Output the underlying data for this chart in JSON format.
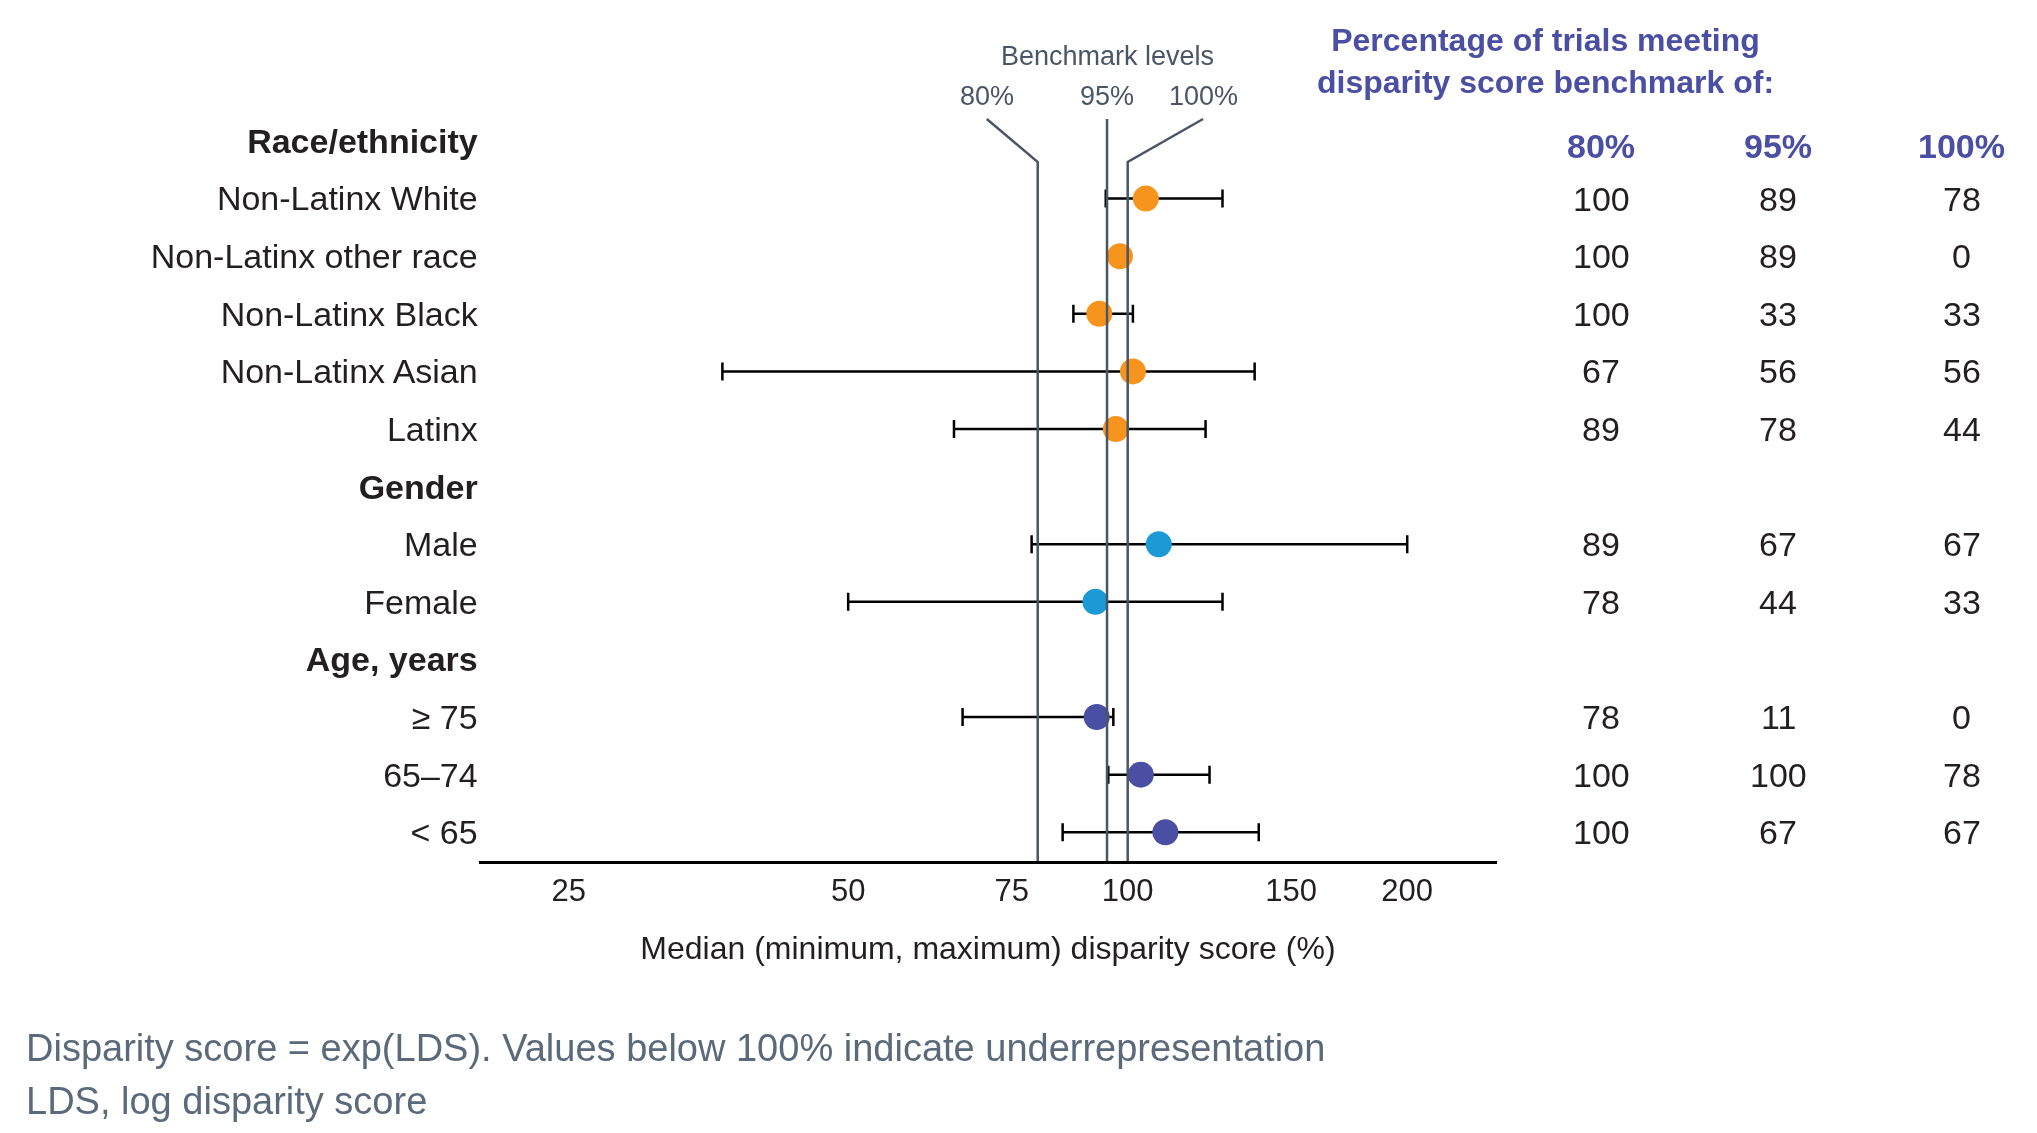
{
  "chart_data": [
    {
      "type": "scatter",
      "orientation": "horizontal",
      "xlabel": "Median (minimum, maximum) disparity score (%)",
      "categories": [
        "Race/ethnicity",
        "Non-Latinx White",
        "Non-Latinx other race",
        "Non-Latinx Black",
        "Non-Latinx Asian",
        "Latinx",
        "Gender",
        "Male",
        "Female",
        "Age, years",
        "≥ 75",
        "65–74",
        "< 65"
      ],
      "values": [
        null,
        104.6,
        98.1,
        93.2,
        101.3,
        97.1,
        null,
        108,
        92.3,
        null,
        92.6,
        103.3,
        109.8
      ],
      "errors": [
        null,
        [
          94.7,
          126.5
        ],
        null,
        [
          87.4,
          101.3
        ],
        [
          36.6,
          137
        ],
        [
          65,
          121.3
        ],
        null,
        [
          78.8,
          200
        ],
        [
          50,
          126.5
        ],
        null,
        [
          66.4,
          96.5
        ],
        [
          95.3,
          122.5
        ],
        [
          85.1,
          138.4
        ]
      ],
      "colors": [
        null,
        "#f7941d",
        "#f7941d",
        "#f7941d",
        "#f7941d",
        "#f7941d",
        null,
        "#1c9ad6",
        "#1c9ad6",
        null,
        "#4a4fa3",
        "#4a4fa3",
        "#4a4fa3"
      ],
      "marker": "circle",
      "log": "x",
      "grid": false,
      "xlim": [
        20,
        250
      ],
      "xticks": [
        25,
        50,
        75,
        100,
        150,
        200
      ],
      "ref_lines": [
        {
          "axis": "x",
          "value": 80,
          "label": "80%",
          "color": "#4a5566"
        },
        {
          "axis": "x",
          "value": 95,
          "label": "95%",
          "color": "#4a5566"
        },
        {
          "axis": "x",
          "value": 100,
          "label": "100%",
          "color": "#4a5566"
        }
      ],
      "annotations": [
        "Benchmark levels",
        "Disparity score = exp(LDS). Values below 100% indicate underrepresentation",
        "LDS, log disparity score"
      ]
    },
    {
      "type": "other",
      "title": "Percentage of trials meeting\ndisparity score benchmark of:",
      "annotations": [
        "80%",
        "95%",
        "100%",
        "100",
        "89",
        "78",
        "100",
        "89",
        "0",
        "100",
        "33",
        "33",
        "67",
        "56",
        "56",
        "89",
        "78",
        "44",
        "89",
        "67",
        "67",
        "78",
        "44",
        "33",
        "78",
        "11",
        "0",
        "100",
        "100",
        "78",
        "100",
        "67",
        "67"
      ]
    }
  ]
}
